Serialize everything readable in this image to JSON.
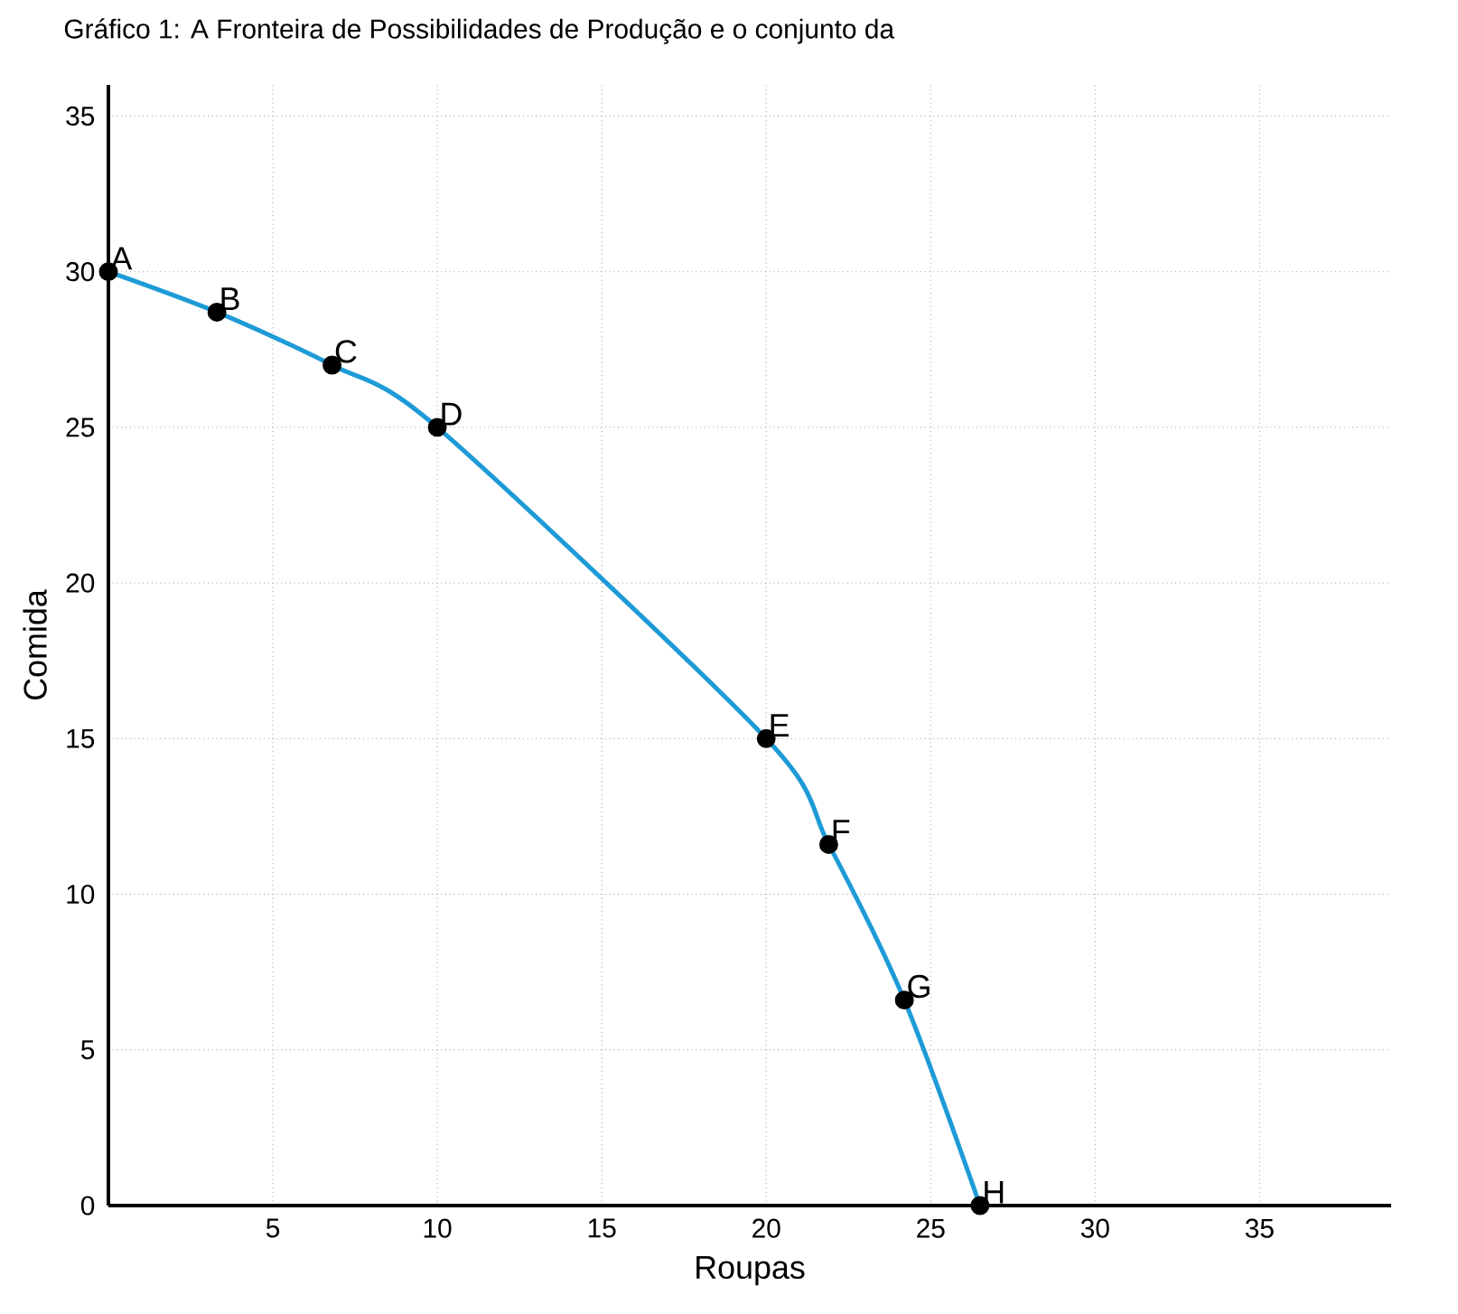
{
  "chart_data": {
    "type": "line",
    "title": "Gráfico 1: A Fronteira de Possibilidades de Produção e o conjunto da",
    "xlabel": "Roupas",
    "ylabel": "Comida",
    "x": [
      0,
      3.3,
      6.8,
      10,
      20,
      21.9,
      24.2,
      26.5
    ],
    "series": [
      {
        "color": "#1e9bd7",
        "values": [
          30,
          28.7,
          27,
          25,
          15,
          11.6,
          6.6,
          0
        ]
      }
    ],
    "xlim": [
      0,
      39
    ],
    "ylim": [
      0,
      36
    ],
    "xticks": [
      5,
      10,
      15,
      20,
      25,
      30,
      35
    ],
    "yticks": [
      0,
      5,
      10,
      15,
      20,
      25,
      30,
      35
    ],
    "grid": true,
    "marker": "circle",
    "line_style": "solid",
    "annotations": [
      {
        "text": "A",
        "x": 0,
        "y": 30
      },
      {
        "text": "B",
        "x": 3.3,
        "y": 28.7
      },
      {
        "text": "C",
        "x": 6.8,
        "y": 27
      },
      {
        "text": "D",
        "x": 10,
        "y": 25
      },
      {
        "text": "E",
        "x": 20,
        "y": 15
      },
      {
        "text": "F",
        "x": 21.9,
        "y": 11.6
      },
      {
        "text": "G",
        "x": 24.2,
        "y": 6.6
      },
      {
        "text": "H",
        "x": 26.5,
        "y": 0
      }
    ]
  }
}
